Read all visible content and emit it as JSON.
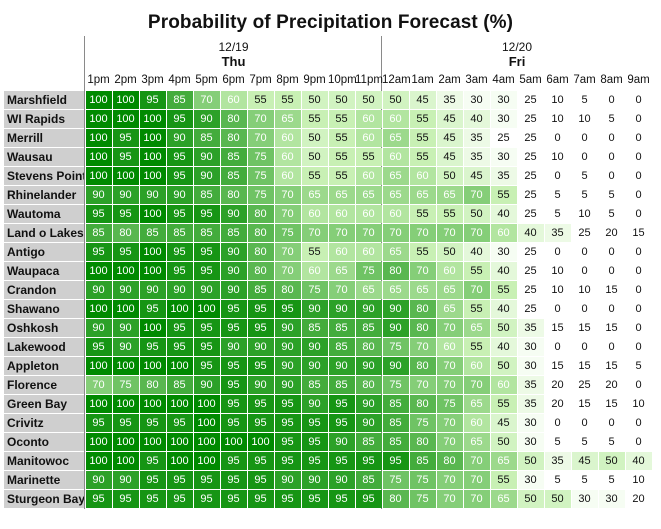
{
  "chart_data": {
    "type": "heatmap",
    "title": "Probability of Precipitation Forecast (%)",
    "days": [
      {
        "date": "12/19",
        "name": "Thu"
      },
      {
        "date": "12/20",
        "name": "Fri"
      }
    ],
    "hours": [
      "1pm",
      "2pm",
      "3pm",
      "4pm",
      "5pm",
      "6pm",
      "7pm",
      "8pm",
      "9pm",
      "10pm",
      "11pm",
      "12am",
      "1am",
      "2am",
      "3am",
      "4am",
      "5am",
      "6am",
      "7am",
      "8am",
      "9am"
    ],
    "rows": [
      {
        "name": "Marshfield",
        "values": [
          100,
          100,
          95,
          85,
          70,
          60,
          55,
          55,
          50,
          50,
          50,
          50,
          45,
          35,
          30,
          30,
          25,
          10,
          5,
          0,
          0
        ]
      },
      {
        "name": "WI Rapids",
        "values": [
          100,
          100,
          100,
          95,
          90,
          80,
          70,
          65,
          55,
          55,
          60,
          60,
          55,
          45,
          40,
          30,
          25,
          10,
          10,
          5,
          0
        ]
      },
      {
        "name": "Merrill",
        "values": [
          100,
          95,
          100,
          90,
          85,
          80,
          70,
          60,
          50,
          55,
          60,
          65,
          55,
          45,
          35,
          25,
          25,
          0,
          0,
          0,
          0
        ]
      },
      {
        "name": "Wausau",
        "values": [
          100,
          95,
          100,
          95,
          90,
          85,
          75,
          60,
          50,
          55,
          55,
          60,
          55,
          45,
          35,
          30,
          25,
          10,
          0,
          0,
          0
        ]
      },
      {
        "name": "Stevens Point",
        "values": [
          100,
          100,
          100,
          95,
          90,
          85,
          75,
          60,
          55,
          55,
          60,
          65,
          60,
          50,
          45,
          35,
          25,
          0,
          5,
          0,
          0
        ]
      },
      {
        "name": "Rhinelander",
        "values": [
          90,
          90,
          90,
          90,
          85,
          80,
          75,
          70,
          65,
          65,
          65,
          65,
          65,
          65,
          70,
          55,
          25,
          5,
          5,
          5,
          0
        ]
      },
      {
        "name": "Wautoma",
        "values": [
          95,
          95,
          100,
          95,
          95,
          90,
          80,
          70,
          60,
          60,
          60,
          60,
          55,
          55,
          50,
          40,
          25,
          5,
          10,
          5,
          0
        ]
      },
      {
        "name": "Land o Lakes",
        "values": [
          85,
          80,
          85,
          85,
          85,
          85,
          80,
          75,
          70,
          70,
          70,
          70,
          70,
          70,
          70,
          60,
          40,
          35,
          25,
          20,
          15
        ]
      },
      {
        "name": "Antigo",
        "values": [
          95,
          95,
          100,
          95,
          95,
          90,
          80,
          70,
          55,
          60,
          60,
          65,
          55,
          50,
          40,
          30,
          25,
          0,
          0,
          0,
          0
        ]
      },
      {
        "name": "Waupaca",
        "values": [
          100,
          100,
          100,
          95,
          95,
          90,
          80,
          70,
          60,
          65,
          75,
          80,
          70,
          60,
          55,
          40,
          25,
          10,
          0,
          0,
          0
        ]
      },
      {
        "name": "Crandon",
        "values": [
          90,
          90,
          90,
          90,
          90,
          90,
          85,
          80,
          75,
          70,
          65,
          65,
          65,
          65,
          70,
          55,
          25,
          10,
          10,
          15,
          0
        ]
      },
      {
        "name": "Shawano",
        "values": [
          100,
          100,
          95,
          100,
          100,
          95,
          95,
          95,
          90,
          90,
          90,
          90,
          80,
          65,
          55,
          40,
          25,
          0,
          0,
          0,
          0
        ]
      },
      {
        "name": "Oshkosh",
        "values": [
          90,
          90,
          100,
          95,
          95,
          95,
          95,
          90,
          85,
          85,
          85,
          90,
          80,
          70,
          65,
          50,
          35,
          15,
          15,
          15,
          0
        ]
      },
      {
        "name": "Lakewood",
        "values": [
          95,
          90,
          95,
          95,
          95,
          90,
          90,
          90,
          90,
          85,
          80,
          75,
          70,
          60,
          55,
          40,
          30,
          0,
          0,
          0,
          0
        ]
      },
      {
        "name": "Appleton",
        "values": [
          100,
          100,
          100,
          100,
          95,
          95,
          95,
          90,
          90,
          90,
          90,
          90,
          80,
          70,
          60,
          50,
          30,
          15,
          15,
          15,
          5
        ]
      },
      {
        "name": "Florence",
        "values": [
          70,
          75,
          80,
          85,
          90,
          95,
          90,
          90,
          85,
          85,
          80,
          75,
          70,
          70,
          70,
          60,
          35,
          20,
          25,
          20,
          0
        ]
      },
      {
        "name": "Green Bay",
        "values": [
          100,
          100,
          100,
          100,
          100,
          95,
          95,
          95,
          90,
          95,
          90,
          85,
          80,
          75,
          65,
          55,
          35,
          20,
          15,
          15,
          10
        ]
      },
      {
        "name": "Crivitz",
        "values": [
          95,
          95,
          95,
          95,
          100,
          95,
          95,
          95,
          95,
          95,
          90,
          85,
          75,
          70,
          60,
          45,
          30,
          0,
          0,
          0,
          0
        ]
      },
      {
        "name": "Oconto",
        "values": [
          100,
          100,
          100,
          100,
          100,
          100,
          100,
          95,
          95,
          90,
          85,
          85,
          80,
          70,
          65,
          50,
          30,
          5,
          5,
          5,
          0
        ]
      },
      {
        "name": "Manitowoc",
        "values": [
          100,
          100,
          95,
          100,
          100,
          95,
          95,
          95,
          95,
          95,
          95,
          95,
          85,
          80,
          70,
          65,
          50,
          35,
          45,
          50,
          40
        ]
      },
      {
        "name": "Marinette",
        "values": [
          90,
          90,
          95,
          95,
          95,
          95,
          95,
          90,
          90,
          90,
          85,
          75,
          75,
          70,
          70,
          55,
          30,
          5,
          5,
          5,
          10
        ]
      },
      {
        "name": "Sturgeon Bay",
        "values": [
          95,
          95,
          95,
          95,
          95,
          95,
          95,
          95,
          95,
          95,
          95,
          80,
          75,
          70,
          70,
          65,
          50,
          50,
          30,
          30,
          20
        ]
      }
    ],
    "color_scale": {
      "low": "#ffffff",
      "mid": "#c8f0b4",
      "high": "#008a00"
    },
    "range": [
      0,
      100
    ]
  }
}
